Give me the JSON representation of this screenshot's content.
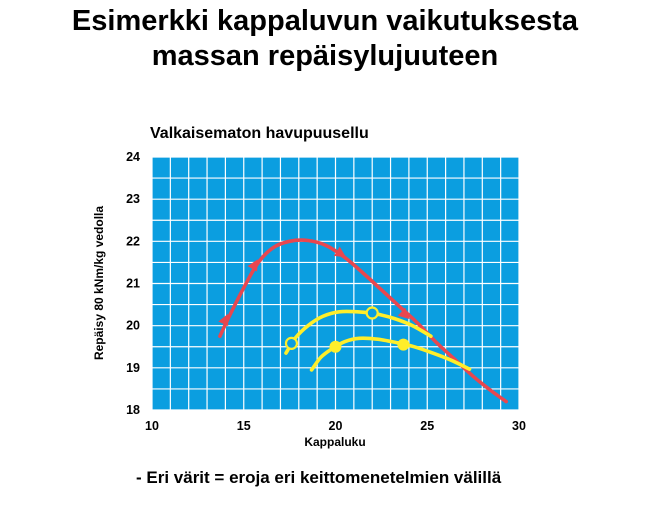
{
  "slide": {
    "title_line1": "Esimerkki kappaluvun vaikutuksesta",
    "title_line2": "massan repäisylujuuteen",
    "footnote": "- Eri värit = eroja eri keittomenetelmien välillä"
  },
  "colors": {
    "plot_background": "#0b9ee0",
    "grid": "#ffffff",
    "red_series": "#e8474f",
    "yellow_series": "#ffee2a"
  },
  "chart_data": {
    "type": "line",
    "title": "Valkaisematon havupuusellu",
    "xlabel": "Kappaluku",
    "ylabel": "Repäisy 80 kNm/kg vedolla",
    "xlim": [
      10,
      30
    ],
    "ylim": [
      18,
      24
    ],
    "xticks": [
      10,
      15,
      20,
      25,
      30
    ],
    "yticks": [
      18,
      19,
      20,
      21,
      22,
      23,
      24
    ],
    "grid": true,
    "series": [
      {
        "color": "#e8474f",
        "marker": "triangle",
        "points": [
          [
            13.7,
            19.75
          ],
          [
            14.3,
            20.3
          ],
          [
            15.0,
            20.9
          ],
          [
            15.8,
            21.5
          ],
          [
            16.6,
            21.85
          ],
          [
            17.5,
            22.0
          ],
          [
            18.5,
            22.02
          ],
          [
            19.5,
            21.9
          ],
          [
            20.5,
            21.62
          ],
          [
            21.5,
            21.25
          ],
          [
            22.5,
            20.85
          ],
          [
            23.5,
            20.45
          ],
          [
            24.5,
            20.05
          ],
          [
            25.5,
            19.6
          ],
          [
            26.5,
            19.2
          ],
          [
            27.5,
            18.8
          ],
          [
            28.5,
            18.45
          ],
          [
            29.3,
            18.2
          ]
        ],
        "marked_points": [
          [
            14.0,
            20.15
          ],
          [
            15.6,
            21.45
          ],
          [
            20.3,
            21.7
          ],
          [
            23.8,
            20.25
          ]
        ]
      },
      {
        "color": "#ffee2a",
        "marker": "open-circle",
        "points": [
          [
            17.3,
            19.35
          ],
          [
            17.8,
            19.7
          ],
          [
            18.5,
            20.0
          ],
          [
            19.3,
            20.22
          ],
          [
            20.2,
            20.33
          ],
          [
            21.2,
            20.33
          ],
          [
            22.2,
            20.28
          ],
          [
            23.2,
            20.17
          ],
          [
            24.2,
            20.0
          ],
          [
            25.2,
            19.75
          ]
        ],
        "marked_points": [
          [
            17.6,
            19.58
          ],
          [
            22.0,
            20.3
          ]
        ]
      },
      {
        "color": "#ffee2a",
        "marker": "filled-circle",
        "points": [
          [
            18.7,
            18.95
          ],
          [
            19.2,
            19.25
          ],
          [
            19.8,
            19.45
          ],
          [
            20.5,
            19.62
          ],
          [
            21.3,
            19.7
          ],
          [
            22.3,
            19.68
          ],
          [
            23.3,
            19.6
          ],
          [
            24.3,
            19.5
          ],
          [
            25.3,
            19.35
          ],
          [
            26.3,
            19.18
          ],
          [
            27.3,
            18.97
          ]
        ],
        "marked_points": [
          [
            20.0,
            19.5
          ],
          [
            23.7,
            19.55
          ]
        ]
      }
    ]
  }
}
